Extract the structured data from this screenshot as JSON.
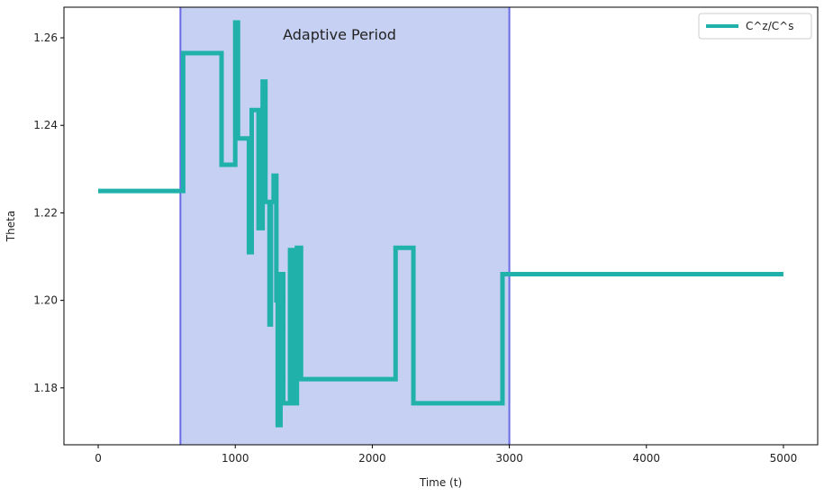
{
  "chart_data": {
    "type": "line",
    "title": "",
    "xlabel": "Time (t)",
    "ylabel": "Theta",
    "xlim": [
      -250,
      5250
    ],
    "ylim": [
      1.167,
      1.267
    ],
    "x_ticks": [
      0,
      1000,
      2000,
      3000,
      4000,
      5000
    ],
    "y_ticks": [
      1.18,
      1.2,
      1.22,
      1.24,
      1.26
    ],
    "x_tick_labels": [
      "0",
      "1000",
      "2000",
      "3000",
      "4000",
      "5000"
    ],
    "y_tick_labels": [
      "1.18",
      "1.20",
      "1.22",
      "1.24",
      "1.26"
    ],
    "grid": false,
    "legend_position": "top-right",
    "shaded_region": {
      "x": [
        600,
        3000
      ],
      "label": "Adaptive Period",
      "fill_color": "#c5d0f2",
      "edge_color": "#6a6ae6"
    },
    "series": [
      {
        "name": "C^z/C^s",
        "color": "#20b2aa",
        "step": "post",
        "x": [
          0,
          620,
          900,
          1000,
          1020,
          1100,
          1120,
          1170,
          1200,
          1220,
          1250,
          1260,
          1280,
          1300,
          1310,
          1330,
          1350,
          1400,
          1420,
          1450,
          1480,
          2170,
          2300,
          2950,
          5000
        ],
        "y": [
          1.225,
          1.2565,
          1.231,
          1.2635,
          1.237,
          1.211,
          1.2435,
          1.2165,
          1.25,
          1.2225,
          1.1945,
          1.2225,
          1.2285,
          1.2,
          1.1715,
          1.206,
          1.1765,
          1.2115,
          1.1765,
          1.212,
          1.182,
          1.212,
          1.1765,
          1.206,
          1.206
        ]
      }
    ]
  }
}
